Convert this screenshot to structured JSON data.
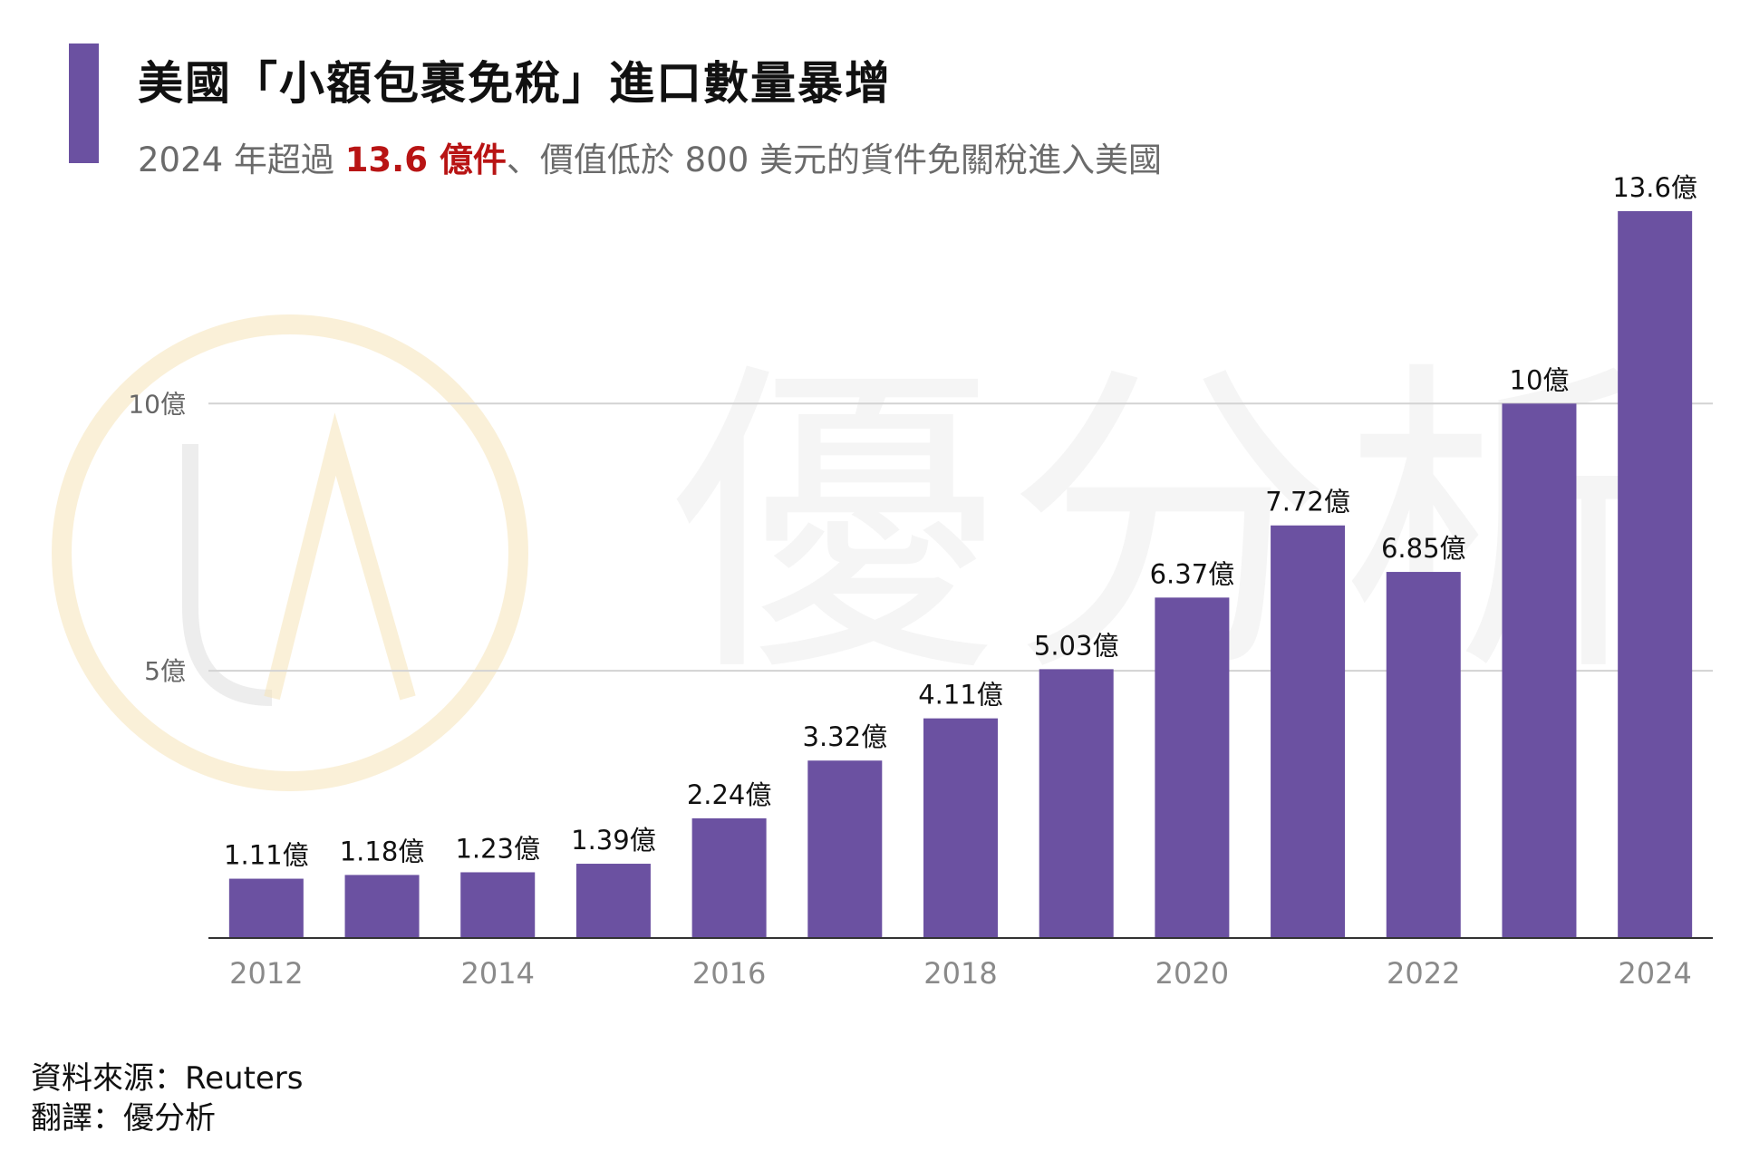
{
  "header": {
    "title": "美國「小額包裹免稅」進口數量暴增",
    "subtitle_pre": "2024 年超過 ",
    "subtitle_highlight": "13.6 億件",
    "subtitle_post": "、價值低於 800 美元的貨件免關稅進入美國",
    "accent_color": "#6b51a1",
    "highlight_color": "#b81414"
  },
  "watermark": {
    "text": "優分析",
    "logo_letters": "UA"
  },
  "chart_data": {
    "type": "bar",
    "categories": [
      "2012",
      "2013",
      "2014",
      "2015",
      "2016",
      "2017",
      "2018",
      "2019",
      "2020",
      "2021",
      "2022",
      "2023",
      "2024"
    ],
    "x_tick_labels": [
      "2012",
      "",
      "2014",
      "",
      "2016",
      "",
      "2018",
      "",
      "2020",
      "",
      "2022",
      "",
      "2024"
    ],
    "values": [
      1.11,
      1.18,
      1.23,
      1.39,
      2.24,
      3.32,
      4.11,
      5.03,
      6.37,
      7.72,
      6.85,
      10,
      13.6
    ],
    "data_labels": [
      "1.11億",
      "1.18億",
      "1.23億",
      "1.39億",
      "2.24億",
      "3.32億",
      "4.11億",
      "5.03億",
      "6.37億",
      "7.72億",
      "6.85億",
      "10億",
      "13.6億"
    ],
    "y_ticks": [
      5,
      10
    ],
    "y_tick_labels": [
      "5億",
      "10億"
    ],
    "ylim": [
      0,
      13.6
    ],
    "bar_color": "#6b51a1",
    "grid": true,
    "legend": "none"
  },
  "footer": {
    "source": "資料來源：Reuters",
    "translation": "翻譯：優分析"
  }
}
